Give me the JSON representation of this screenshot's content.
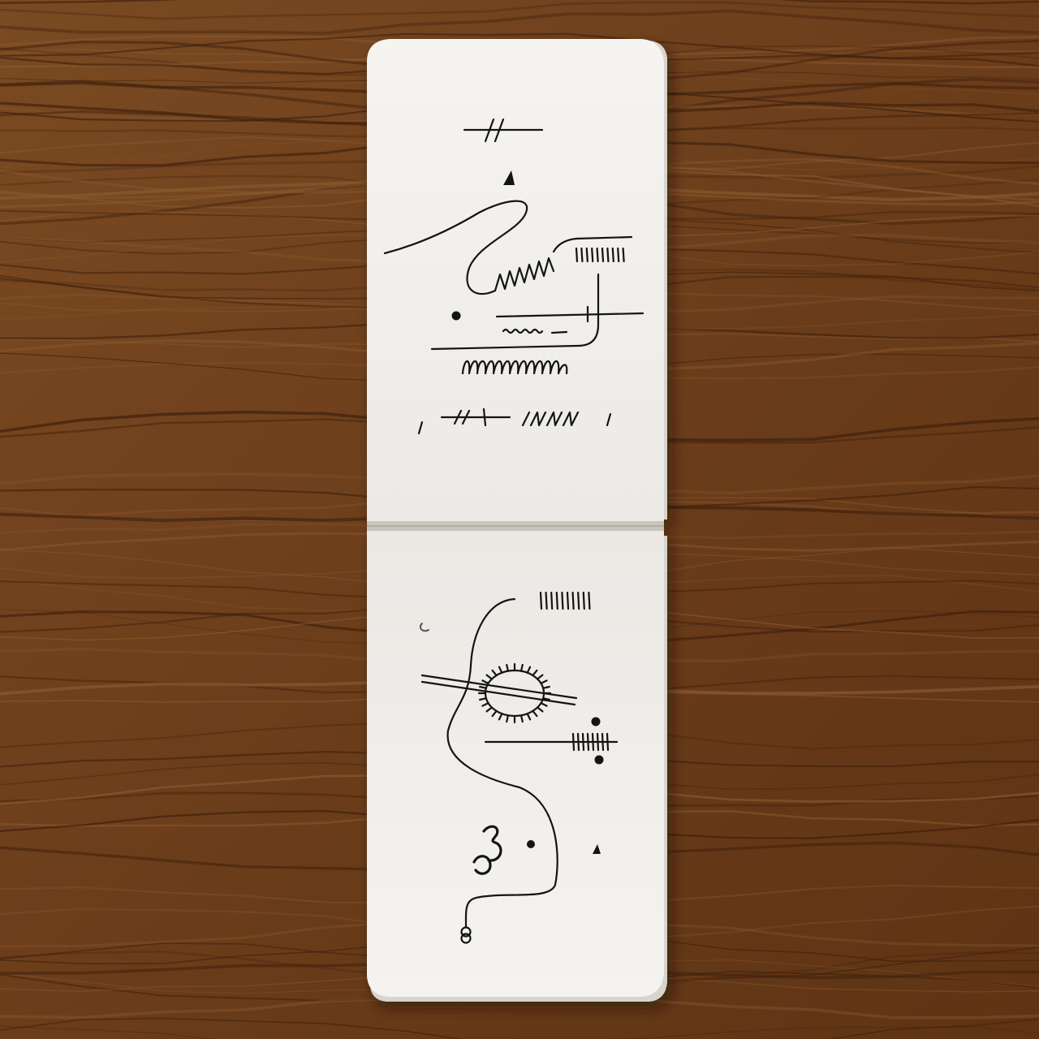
{
  "colors": {
    "wood_base": "#6b3f1d",
    "wood_light": "#8a5a30",
    "wood_dark": "#3e200c",
    "paper": "#f3f1ee",
    "paper_edge": "#dcd8d2",
    "ink": "#141414"
  },
  "objects": {
    "surface": "wooden-table",
    "item": "open-pocket-notebook",
    "pages": [
      "top-page-abstract-drawing",
      "bottom-page-abstract-drawing"
    ]
  }
}
